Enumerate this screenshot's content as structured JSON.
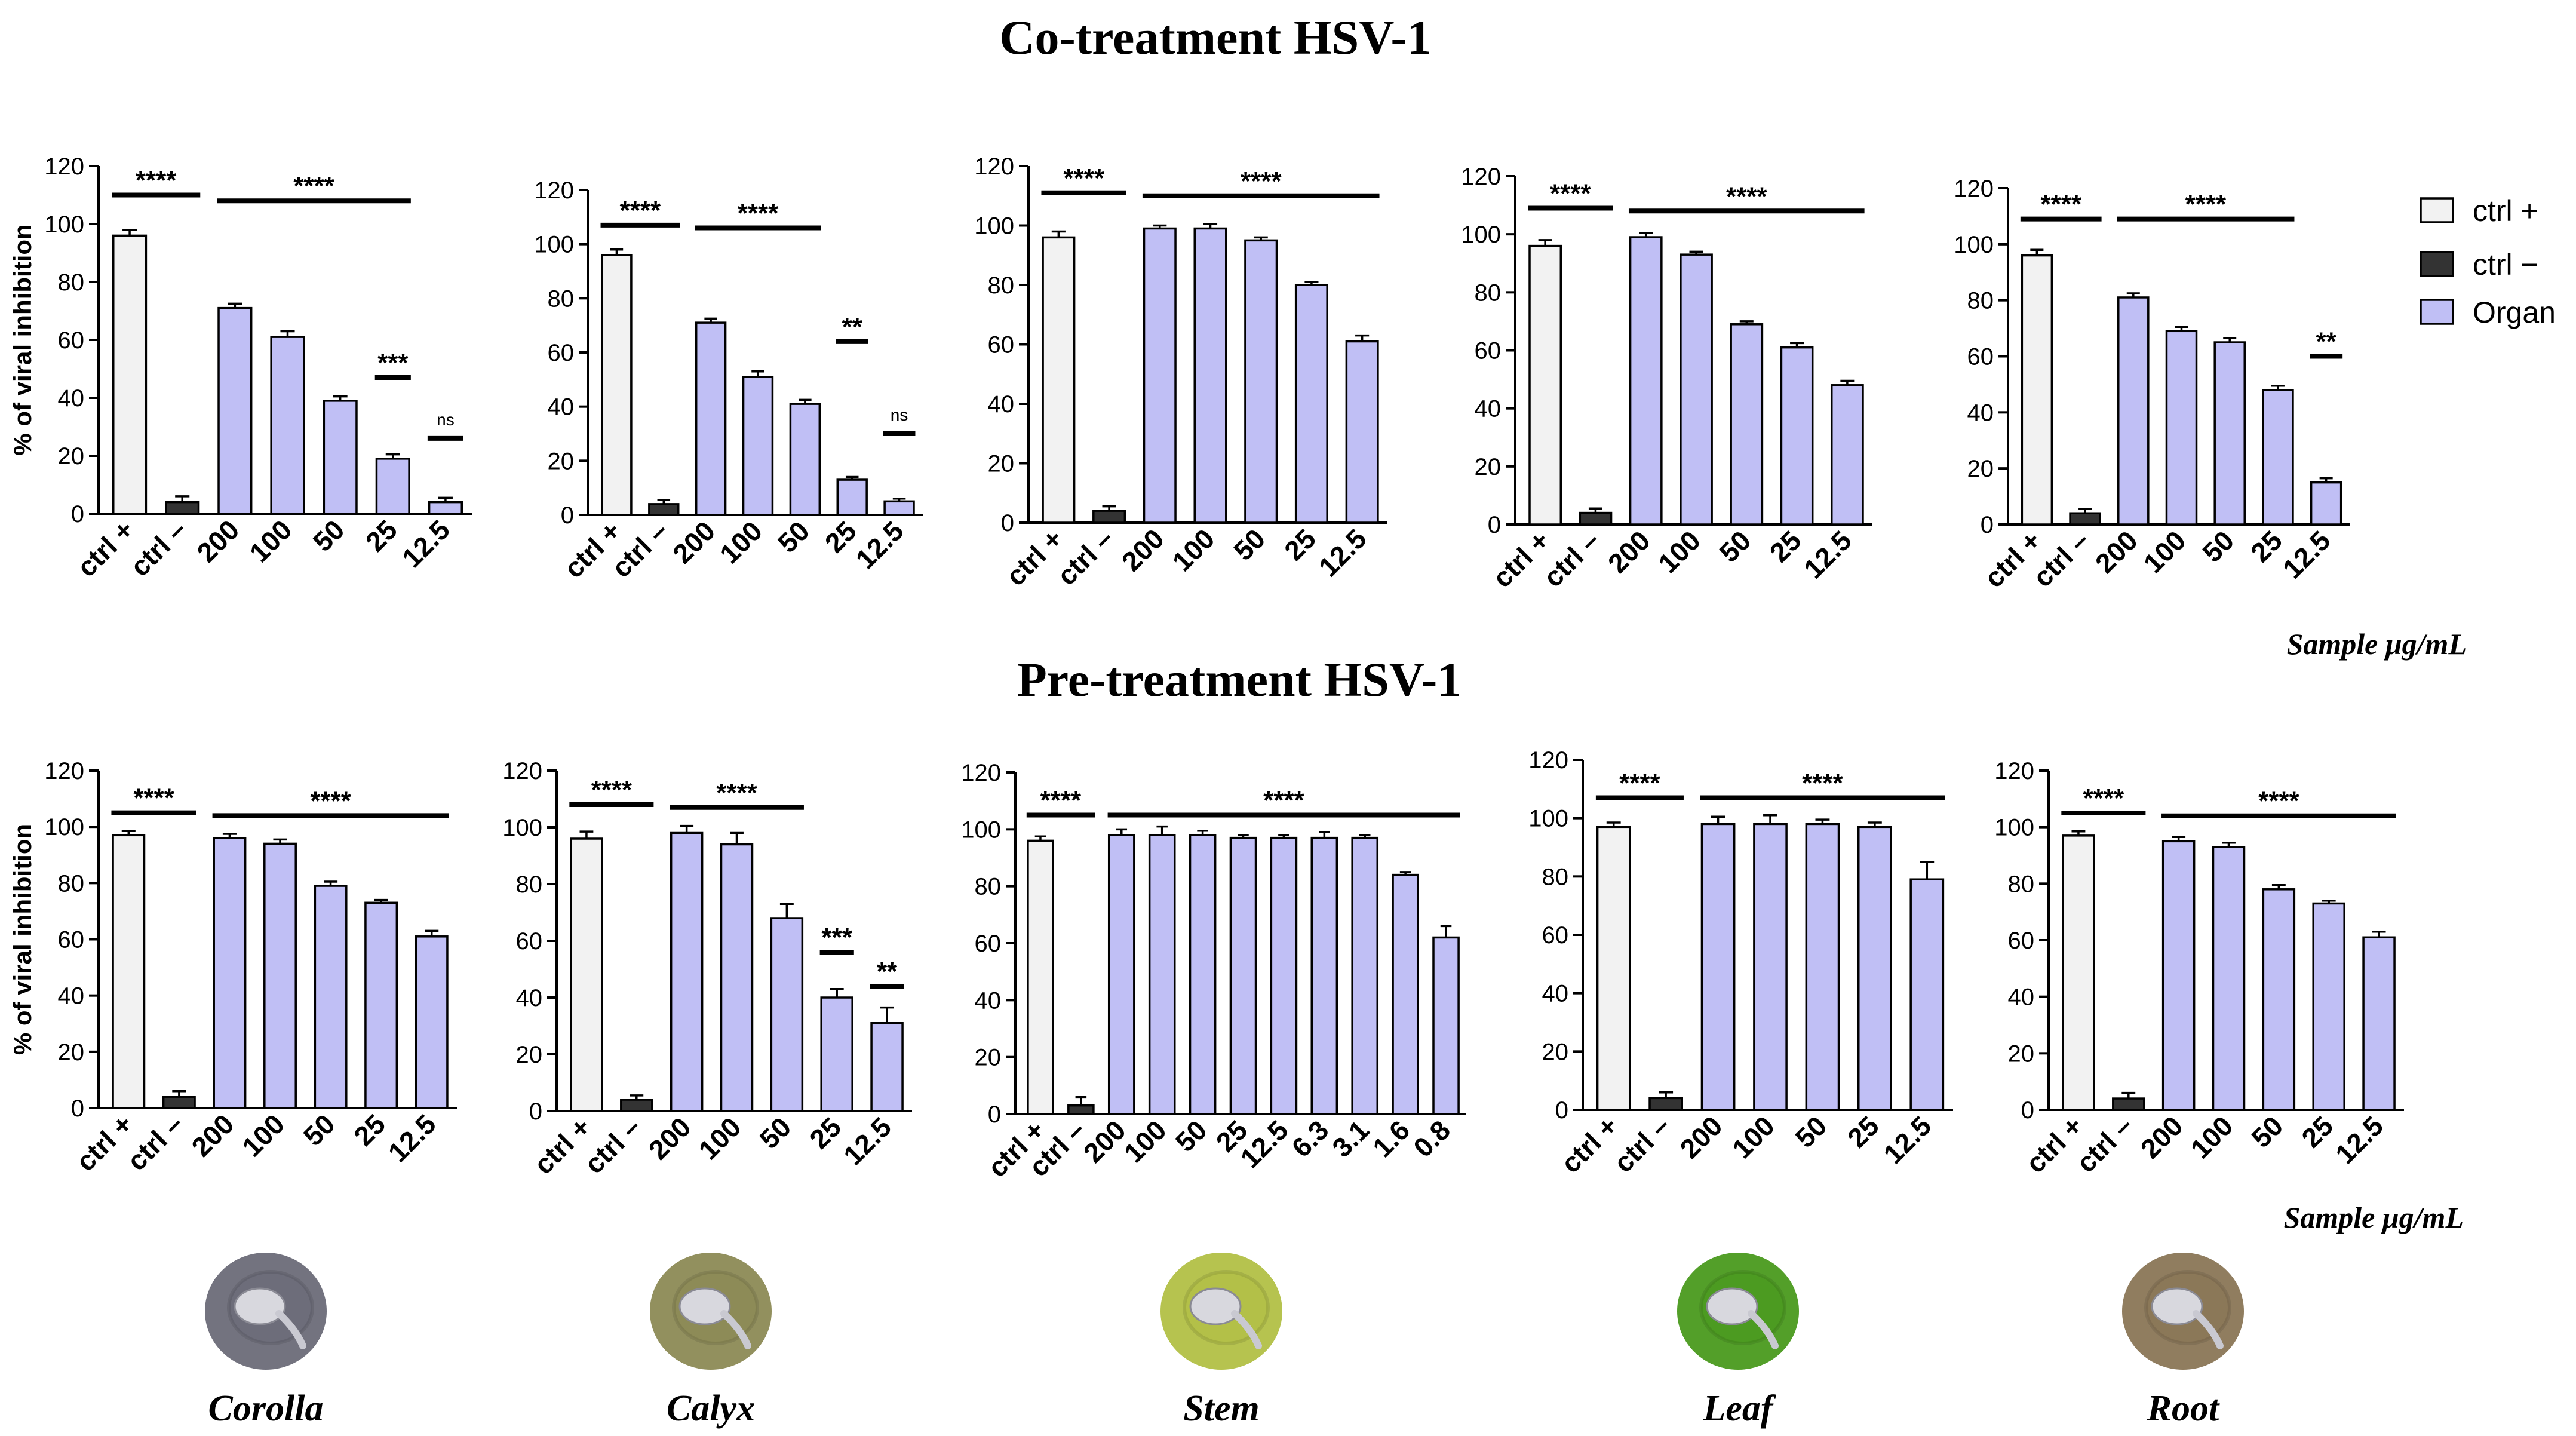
{
  "titles": {
    "co": "Co-treatment HSV-1",
    "pre": "Pre-treatment HSV-1"
  },
  "unit_label": "Sample μg/mL",
  "ylabel": "% of viral inhibition",
  "legend": [
    {
      "label": "ctrl +",
      "color": "#f2f2f2"
    },
    {
      "label": "ctrl −",
      "color": "#333333"
    },
    {
      "label": "Organ",
      "color": "#c0bff5"
    }
  ],
  "organs": [
    "Corolla",
    "Calyx",
    "Stem",
    "Leaf",
    "Root"
  ],
  "organ_colors": [
    "#6b6b78",
    "#8c8a55",
    "#b2c046",
    "#4a9a1e",
    "#8a7656"
  ],
  "colors": {
    "ctrl_pos": "#f2f2f2",
    "ctrl_neg": "#333333",
    "organ": "#c0bff5"
  },
  "chart_data": [
    {
      "type": "bar",
      "group": "co",
      "organ": "Corolla",
      "ylim": [
        0,
        120
      ],
      "yticks": [
        0,
        20,
        40,
        60,
        80,
        100,
        120
      ],
      "categories": [
        "ctrl +",
        "ctrl –",
        "200",
        "100",
        "50",
        "25",
        "12.5"
      ],
      "values": [
        96,
        4,
        71,
        61,
        39,
        19,
        4
      ],
      "errors": [
        2,
        2,
        1.5,
        2,
        1.5,
        1.5,
        1.5
      ],
      "sig": [
        {
          "from": 0,
          "to": 1,
          "y": 110,
          "label": "****"
        },
        {
          "from": 2,
          "to": 5,
          "y": 108,
          "label": "****"
        },
        {
          "from": 5,
          "to": 5,
          "y": 47,
          "label": "***"
        },
        {
          "from": 6,
          "to": 6,
          "y": 26,
          "label": "ns"
        }
      ]
    },
    {
      "type": "bar",
      "group": "co",
      "organ": "Calyx",
      "ylim": [
        0,
        120
      ],
      "yticks": [
        0,
        20,
        40,
        60,
        80,
        100,
        120
      ],
      "categories": [
        "ctrl +",
        "ctrl –",
        "200",
        "100",
        "50",
        "25",
        "12.5"
      ],
      "values": [
        96,
        4,
        71,
        51,
        41,
        13,
        5
      ],
      "errors": [
        2,
        1.5,
        1.5,
        2,
        1.5,
        1,
        1
      ],
      "sig": [
        {
          "from": 0,
          "to": 1,
          "y": 107,
          "label": "****"
        },
        {
          "from": 2,
          "to": 4,
          "y": 106,
          "label": "****"
        },
        {
          "from": 5,
          "to": 5,
          "y": 64,
          "label": "**"
        },
        {
          "from": 6,
          "to": 6,
          "y": 30,
          "label": "ns"
        }
      ]
    },
    {
      "type": "bar",
      "group": "co",
      "organ": "Stem",
      "ylim": [
        0,
        120
      ],
      "yticks": [
        0,
        20,
        40,
        60,
        80,
        100,
        120
      ],
      "categories": [
        "ctrl +",
        "ctrl –",
        "200",
        "100",
        "50",
        "25",
        "12.5"
      ],
      "values": [
        96,
        4,
        99,
        99,
        95,
        80,
        61
      ],
      "errors": [
        2,
        1.5,
        1,
        1.5,
        1,
        1,
        2
      ],
      "sig": [
        {
          "from": 0,
          "to": 1,
          "y": 111,
          "label": "****"
        },
        {
          "from": 2,
          "to": 6,
          "y": 110,
          "label": "****"
        }
      ]
    },
    {
      "type": "bar",
      "group": "co",
      "organ": "Leaf",
      "ylim": [
        0,
        120
      ],
      "yticks": [
        0,
        20,
        40,
        60,
        80,
        100,
        120
      ],
      "categories": [
        "ctrl +",
        "ctrl –",
        "200",
        "100",
        "50",
        "25",
        "12.5"
      ],
      "values": [
        96,
        4,
        99,
        93,
        69,
        61,
        48
      ],
      "errors": [
        2,
        1.5,
        1.5,
        1,
        1,
        1.5,
        1.5
      ],
      "sig": [
        {
          "from": 0,
          "to": 1,
          "y": 109,
          "label": "****"
        },
        {
          "from": 2,
          "to": 6,
          "y": 108,
          "label": "****"
        }
      ]
    },
    {
      "type": "bar",
      "group": "co",
      "organ": "Root",
      "ylim": [
        0,
        120
      ],
      "yticks": [
        0,
        20,
        40,
        60,
        80,
        100,
        120
      ],
      "categories": [
        "ctrl +",
        "ctrl –",
        "200",
        "100",
        "50",
        "25",
        "12.5"
      ],
      "values": [
        96,
        4,
        81,
        69,
        65,
        48,
        15
      ],
      "errors": [
        2,
        1.5,
        1.5,
        1.5,
        1.5,
        1.5,
        1.5
      ],
      "sig": [
        {
          "from": 0,
          "to": 1,
          "y": 109,
          "label": "****"
        },
        {
          "from": 2,
          "to": 5,
          "y": 109,
          "label": "****"
        },
        {
          "from": 6,
          "to": 6,
          "y": 60,
          "label": "**"
        }
      ]
    },
    {
      "type": "bar",
      "group": "pre",
      "organ": "Corolla",
      "ylim": [
        0,
        120
      ],
      "yticks": [
        0,
        20,
        40,
        60,
        80,
        100,
        120
      ],
      "categories": [
        "ctrl +",
        "ctrl –",
        "200",
        "100",
        "50",
        "25",
        "12.5"
      ],
      "values": [
        97,
        4,
        96,
        94,
        79,
        73,
        61
      ],
      "errors": [
        1.5,
        2,
        1.5,
        1.5,
        1.5,
        1,
        2
      ],
      "sig": [
        {
          "from": 0,
          "to": 1,
          "y": 105,
          "label": "****"
        },
        {
          "from": 2,
          "to": 6,
          "y": 104,
          "label": "****"
        }
      ]
    },
    {
      "type": "bar",
      "group": "pre",
      "organ": "Calyx",
      "ylim": [
        0,
        120
      ],
      "yticks": [
        0,
        20,
        40,
        60,
        80,
        100,
        120
      ],
      "categories": [
        "ctrl +",
        "ctrl –",
        "200",
        "100",
        "50",
        "25",
        "12.5"
      ],
      "values": [
        96,
        4,
        98,
        94,
        68,
        40,
        31
      ],
      "errors": [
        2.5,
        1.5,
        2.5,
        4,
        5,
        3,
        5.5
      ],
      "sig": [
        {
          "from": 0,
          "to": 1,
          "y": 108,
          "label": "****"
        },
        {
          "from": 2,
          "to": 4,
          "y": 107,
          "label": "****"
        },
        {
          "from": 5,
          "to": 5,
          "y": 56,
          "label": "***"
        },
        {
          "from": 6,
          "to": 6,
          "y": 44,
          "label": "**"
        }
      ]
    },
    {
      "type": "bar",
      "group": "pre",
      "organ": "Stem",
      "ylim": [
        0,
        120
      ],
      "yticks": [
        0,
        20,
        40,
        60,
        80,
        100,
        120
      ],
      "categories": [
        "ctrl +",
        "ctrl –",
        "200",
        "100",
        "50",
        "25",
        "12.5",
        "6.3",
        "3.1",
        "1.6",
        "0.8"
      ],
      "values": [
        96,
        3,
        98,
        98,
        98,
        97,
        97,
        97,
        97,
        84,
        62
      ],
      "errors": [
        1.5,
        3,
        2,
        3,
        1.5,
        1,
        1,
        2,
        1,
        1,
        4
      ],
      "sig": [
        {
          "from": 0,
          "to": 1,
          "y": 105,
          "label": "****"
        },
        {
          "from": 2,
          "to": 10,
          "y": 105,
          "label": "****"
        }
      ]
    },
    {
      "type": "bar",
      "group": "pre",
      "organ": "Leaf",
      "ylim": [
        0,
        120
      ],
      "yticks": [
        0,
        20,
        40,
        60,
        80,
        100,
        120
      ],
      "categories": [
        "ctrl +",
        "ctrl –",
        "200",
        "100",
        "50",
        "25",
        "12.5"
      ],
      "values": [
        97,
        4,
        98,
        98,
        98,
        97,
        79
      ],
      "errors": [
        1.5,
        2,
        2.5,
        3,
        1.5,
        1.5,
        6
      ],
      "sig": [
        {
          "from": 0,
          "to": 1,
          "y": 107,
          "label": "****"
        },
        {
          "from": 2,
          "to": 6,
          "y": 107,
          "label": "****"
        }
      ]
    },
    {
      "type": "bar",
      "group": "pre",
      "organ": "Root",
      "ylim": [
        0,
        120
      ],
      "yticks": [
        0,
        20,
        40,
        60,
        80,
        100,
        120
      ],
      "categories": [
        "ctrl +",
        "ctrl –",
        "200",
        "100",
        "50",
        "25",
        "12.5"
      ],
      "values": [
        97,
        4,
        95,
        93,
        78,
        73,
        61
      ],
      "errors": [
        1.5,
        2,
        1.5,
        1.5,
        1.5,
        1,
        2
      ],
      "sig": [
        {
          "from": 0,
          "to": 1,
          "y": 105,
          "label": "****"
        },
        {
          "from": 2,
          "to": 6,
          "y": 104,
          "label": "****"
        }
      ]
    }
  ]
}
